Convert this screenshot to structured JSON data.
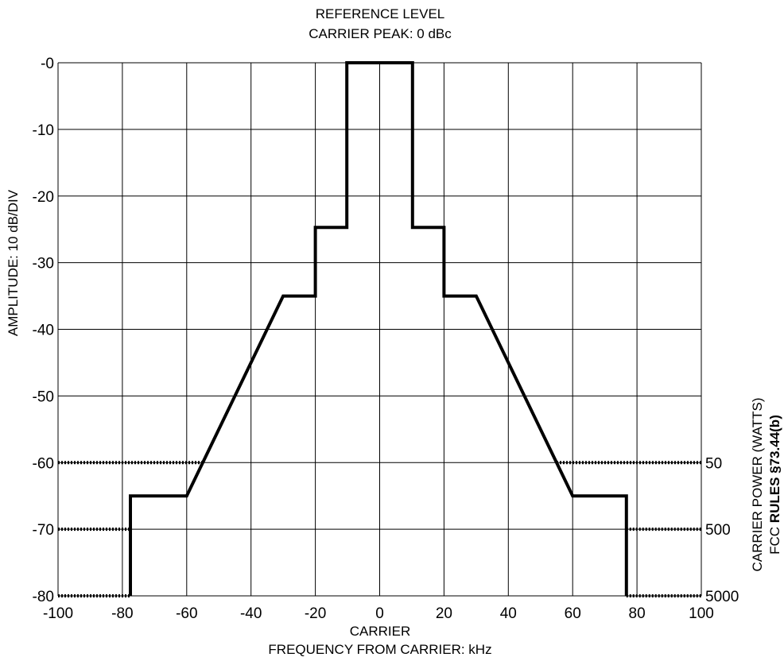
{
  "chart_data": {
    "type": "line",
    "title": "REFERENCE LEVEL",
    "subtitle": "CARRIER PEAK: 0 dBc",
    "xlabel": "FREQUENCY FROM CARRIER: kHz",
    "xlabel_center": "CARRIER",
    "ylabel": "AMPLITUDE: 10 dB/DIV",
    "xlim": [
      -100,
      100
    ],
    "ylim": [
      -80,
      0
    ],
    "x_ticks": [
      {
        "value": -100,
        "label": "-100"
      },
      {
        "value": -80,
        "label": "-80"
      },
      {
        "value": -60,
        "label": "-60"
      },
      {
        "value": -40,
        "label": "-40"
      },
      {
        "value": -20,
        "label": "-20"
      },
      {
        "value": 0,
        "label": "0"
      },
      {
        "value": 20,
        "label": "20"
      },
      {
        "value": 40,
        "label": "40"
      },
      {
        "value": 60,
        "label": "60"
      },
      {
        "value": 80,
        "label": "80"
      },
      {
        "value": 100,
        "label": "100"
      }
    ],
    "y_ticks": [
      {
        "value": 0,
        "label": "-0"
      },
      {
        "value": -10,
        "label": "-10"
      },
      {
        "value": -20,
        "label": "-20"
      },
      {
        "value": -30,
        "label": "-30"
      },
      {
        "value": -40,
        "label": "-40"
      },
      {
        "value": -50,
        "label": "-50"
      },
      {
        "value": -60,
        "label": "-60"
      },
      {
        "value": -70,
        "label": "-70"
      },
      {
        "value": -80,
        "label": "-80"
      }
    ],
    "grid": true,
    "series": [
      {
        "values": [
          [
            -77.5,
            -80
          ],
          [
            -77.5,
            -65
          ],
          [
            -60,
            -65
          ],
          [
            -30,
            -35
          ],
          [
            -20,
            -35
          ],
          [
            -20,
            -24.7
          ],
          [
            -10.2,
            -24.7
          ],
          [
            -10.2,
            0
          ],
          [
            10.2,
            0
          ],
          [
            10.2,
            -24.7
          ],
          [
            20,
            -24.7
          ],
          [
            20,
            -35
          ],
          [
            30,
            -35
          ],
          [
            60,
            -65
          ],
          [
            76.7,
            -65
          ],
          [
            76.7,
            -80
          ]
        ]
      }
    ],
    "power_lines": [
      {
        "amplitude": -60,
        "label": "50"
      },
      {
        "amplitude": -70,
        "label": "500"
      },
      {
        "amplitude": -80,
        "label": "5000"
      }
    ],
    "right_axis_label": "CARRIER POWER (WATTS)",
    "right_axis_label2_prefix": "FCC ",
    "right_axis_label2_bold": "RULES §73.44(b)"
  }
}
